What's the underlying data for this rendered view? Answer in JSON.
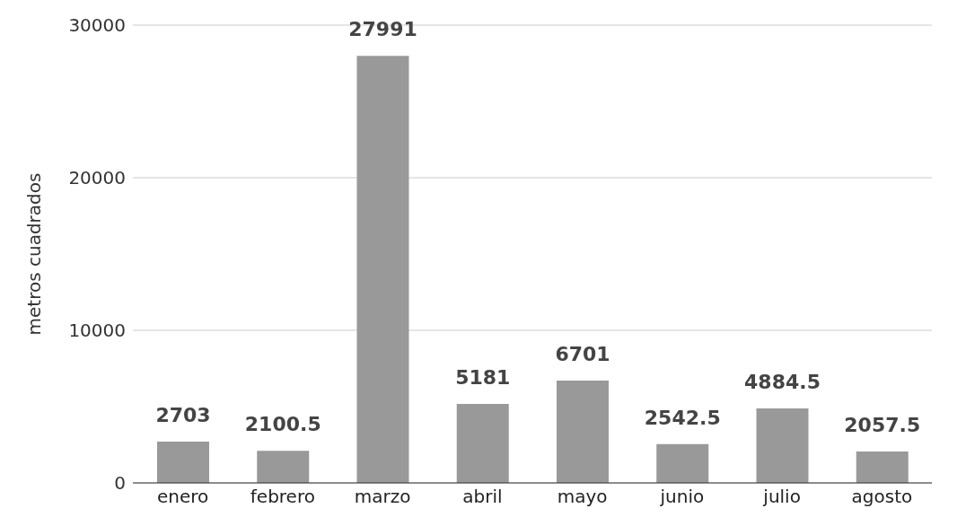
{
  "chart_data": {
    "type": "bar",
    "ylabel": "metros cuadrados",
    "categories": [
      "enero",
      "febrero",
      "marzo",
      "abril",
      "mayo",
      "junio",
      "julio",
      "agosto"
    ],
    "values": [
      2703,
      2100.5,
      27991,
      5181,
      6701,
      2542.5,
      4884.5,
      2057.5
    ],
    "color": "#999999",
    "ylim": [
      0,
      30000
    ],
    "yticks": [
      0,
      10000,
      20000,
      30000
    ],
    "grid": "y",
    "data_labels": true
  }
}
